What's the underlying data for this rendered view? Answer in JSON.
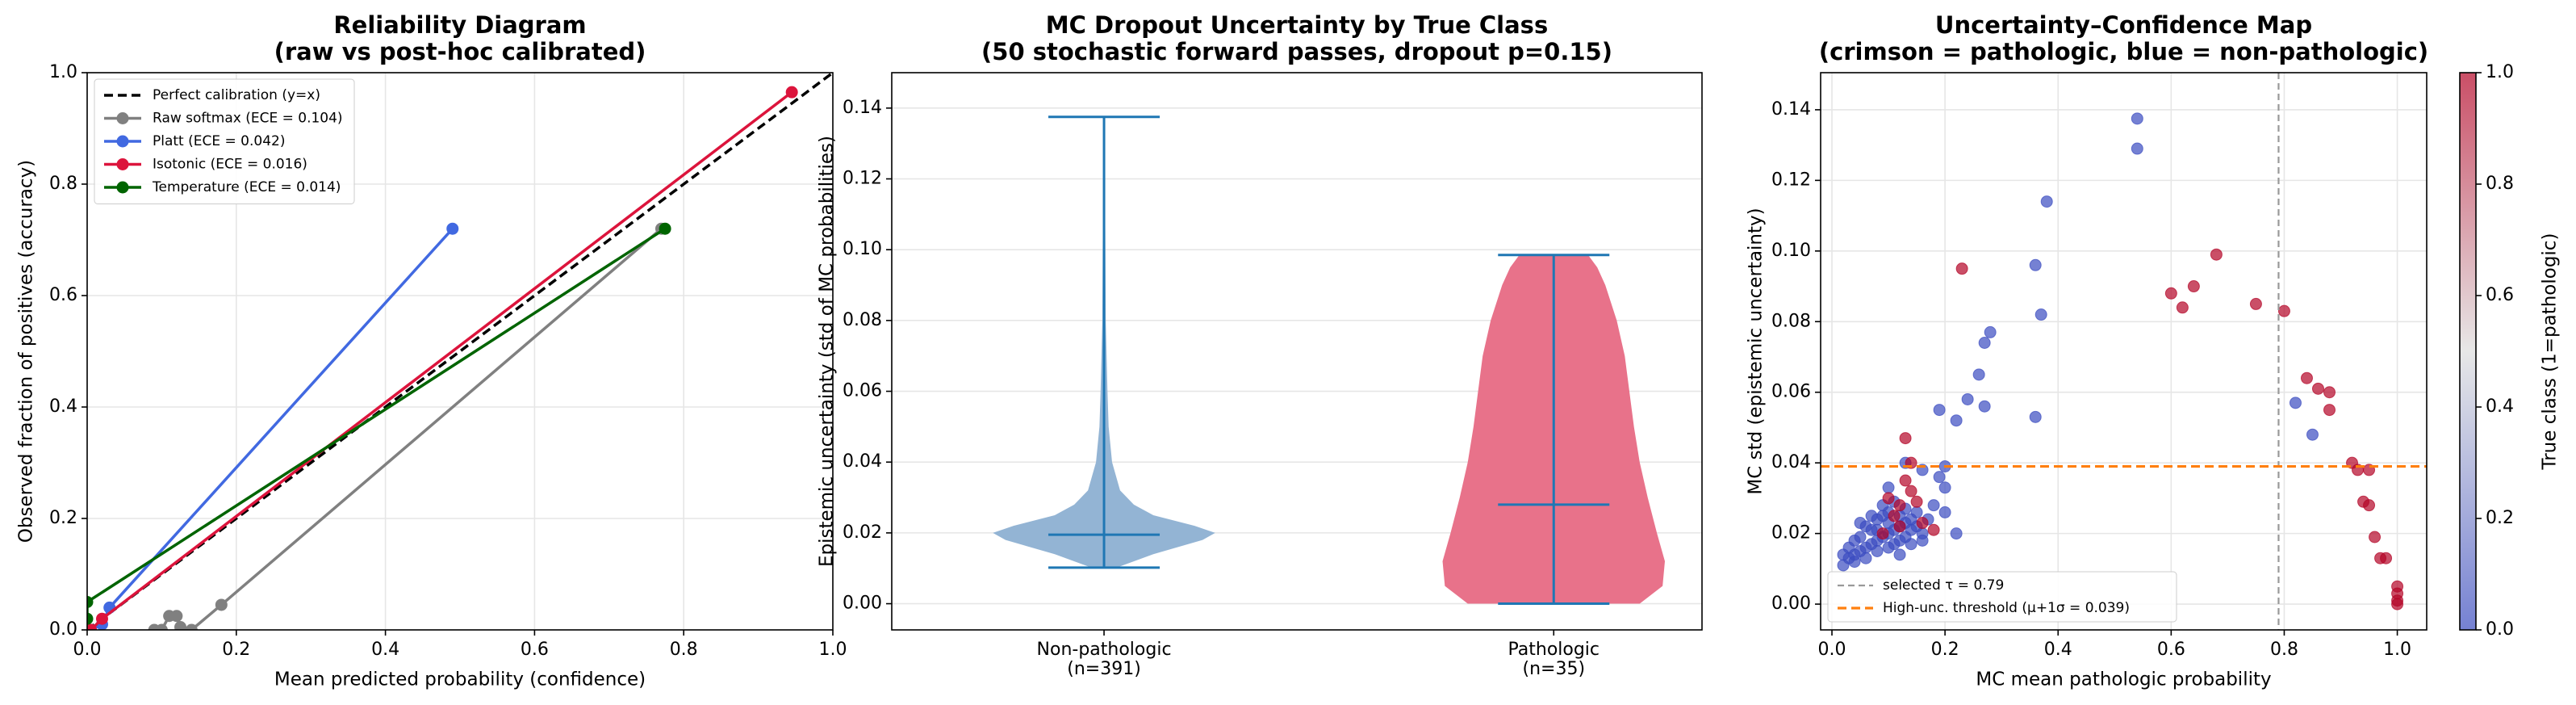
{
  "chart_data": [
    {
      "type": "line",
      "title": [
        "Reliability Diagram",
        "(raw vs post-hoc calibrated)"
      ],
      "xlabel": "Mean predicted probability (confidence)",
      "ylabel": "Observed fraction of positives (accuracy)",
      "xlim": [
        0,
        1
      ],
      "ylim": [
        0,
        1
      ],
      "xticks": [
        {
          "value": 0,
          "label": "0.0"
        },
        0.2,
        0.4,
        0.6,
        0.8,
        {
          "value": 1,
          "label": "1.0"
        }
      ],
      "yticks": [
        {
          "value": 0,
          "label": "0.0"
        },
        0.2,
        0.4,
        0.6,
        0.8,
        {
          "value": 1,
          "label": "1.0"
        }
      ],
      "grid": true,
      "legend": "upper left",
      "series": [
        {
          "name": "Perfect calibration (y=x)",
          "color": "#000000",
          "dashed": true,
          "markers": false,
          "x": [
            0,
            1
          ],
          "y": [
            0,
            1
          ]
        },
        {
          "name": "Raw softmax (ECE = 0.104)",
          "color": "#808080",
          "dashed": false,
          "markers": true,
          "x": [
            0.09,
            0.1,
            0.11,
            0.12,
            0.125,
            0.14,
            0.18,
            0.77
          ],
          "y": [
            0,
            0,
            0.025,
            0.025,
            0.005,
            0,
            0.045,
            0.72
          ]
        },
        {
          "name": "Platt (ECE = 0.042)",
          "color": "#4169e1",
          "dashed": false,
          "markers": true,
          "x": [
            0.005,
            0.02,
            0.03,
            0.49
          ],
          "y": [
            0,
            0.01,
            0.04,
            0.72
          ]
        },
        {
          "name": "Isotonic (ECE = 0.016)",
          "color": "#dc143c",
          "dashed": false,
          "markers": true,
          "x": [
            0.005,
            0.02,
            0.945
          ],
          "y": [
            0,
            0.02,
            0.965
          ]
        },
        {
          "name": "Temperature (ECE = 0.014)",
          "color": "#006400",
          "dashed": false,
          "markers": true,
          "x": [
            0,
            0,
            0.775
          ],
          "y": [
            0.02,
            0.05,
            0.72
          ]
        }
      ]
    },
    {
      "type": "violin",
      "title": [
        "MC Dropout Uncertainty by True Class",
        "(50 stochastic forward passes, dropout p=0.15)"
      ],
      "ylabel": "Epistemic uncertainty (std of MC probabilities)",
      "categories": [
        [
          "Non-pathologic",
          "(n=391)"
        ],
        [
          "Pathologic",
          "(n=35)"
        ]
      ],
      "ylim": [
        -0.0074,
        0.15
      ],
      "yticks": [
        {
          "value": 0,
          "label": "0.00"
        },
        0.02,
        0.04,
        0.06,
        0.08,
        {
          "value": 0.1,
          "label": "0.10"
        },
        0.12,
        0.14
      ],
      "grid": true,
      "line_color": "#1f77b4",
      "series": [
        {
          "color": "#93b4d4",
          "min": 0.0102,
          "max": 0.1375,
          "median": 0.0195,
          "profile": {
            "y": [
              0.0102,
              0.014,
              0.018,
              0.02,
              0.022,
              0.025,
              0.028,
              0.032,
              0.04,
              0.05,
              0.06,
              0.08,
              0.1375
            ],
            "half_width": [
              0.11,
              0.43,
              0.86,
              0.97,
              0.79,
              0.43,
              0.26,
              0.14,
              0.07,
              0.04,
              0.03,
              0.015,
              0.005
            ]
          }
        },
        {
          "color": "#e8728a",
          "min": 0,
          "max": 0.0985,
          "median": 0.028,
          "profile": {
            "y": [
              0,
              0.005,
              0.012,
              0.02,
              0.03,
              0.04,
              0.05,
              0.06,
              0.07,
              0.08,
              0.09,
              0.095,
              0.0985
            ],
            "half_width": [
              0.75,
              0.95,
              0.97,
              0.9,
              0.82,
              0.75,
              0.7,
              0.66,
              0.62,
              0.55,
              0.45,
              0.38,
              0.3
            ]
          }
        }
      ]
    },
    {
      "type": "scatter",
      "title": [
        "Uncertainty–Confidence Map",
        "(crimson = pathologic, blue = non-pathologic)"
      ],
      "xlabel": "MC mean pathologic probability",
      "ylabel": "MC std (epistemic uncertainty)",
      "xlim": [
        -0.02,
        1.052
      ],
      "ylim": [
        -0.0073,
        0.1505
      ],
      "xticks": [
        {
          "value": 0,
          "label": "0.0"
        },
        0.2,
        0.4,
        0.6,
        0.8,
        {
          "value": 1,
          "label": "1.0"
        }
      ],
      "yticks": [
        {
          "value": 0,
          "label": "0.00"
        },
        0.02,
        0.04,
        0.06,
        0.08,
        {
          "value": 0.1,
          "label": "0.10"
        },
        0.12,
        0.14
      ],
      "grid": true,
      "legend": "lower left",
      "x": [
        0.02,
        0.03,
        0.04,
        0.05,
        0.06,
        0.07,
        0.08,
        0.09,
        0.1,
        0.11,
        0.12,
        0.13,
        0.14,
        0.15,
        0.16,
        0.05,
        0.06,
        0.07,
        0.08,
        0.09,
        0.1,
        0.11,
        0.12,
        0.13,
        0.14,
        0.15,
        0.04,
        0.03,
        0.06,
        0.08,
        0.1,
        0.12,
        0.09,
        0.11,
        0.13,
        0.07,
        0.05,
        0.17,
        0.1,
        0.08,
        0.12,
        0.14,
        0.02,
        0.04,
        0.16,
        0.54,
        0.54,
        0.38,
        0.36,
        0.37,
        0.36,
        0.28,
        0.27,
        0.26,
        0.24,
        0.27,
        0.19,
        0.22,
        0.2,
        0.19,
        0.2,
        0.18,
        0.2,
        0.22,
        0.82,
        0.85,
        0.13,
        0.1,
        0.16,
        0.23,
        0.6,
        0.62,
        0.64,
        0.68,
        0.75,
        0.8,
        0.84,
        0.86,
        0.88,
        0.88,
        0.92,
        0.93,
        0.95,
        0.94,
        0.95,
        0.96,
        0.97,
        0.98,
        1.0,
        1.0,
        1.0,
        1.0,
        0.13,
        0.14,
        0.13,
        0.14,
        0.15,
        0.12,
        0.11,
        0.16,
        0.09,
        0.12,
        0.18,
        0.1
      ],
      "y": [
        0.011,
        0.013,
        0.014,
        0.015,
        0.016,
        0.017,
        0.018,
        0.019,
        0.02,
        0.021,
        0.022,
        0.023,
        0.024,
        0.022,
        0.02,
        0.019,
        0.022,
        0.021,
        0.024,
        0.025,
        0.026,
        0.017,
        0.018,
        0.019,
        0.017,
        0.026,
        0.018,
        0.016,
        0.013,
        0.015,
        0.016,
        0.014,
        0.028,
        0.029,
        0.027,
        0.025,
        0.023,
        0.024,
        0.023,
        0.021,
        0.025,
        0.021,
        0.014,
        0.012,
        0.018,
        0.1375,
        0.129,
        0.114,
        0.096,
        0.082,
        0.053,
        0.077,
        0.074,
        0.065,
        0.058,
        0.056,
        0.055,
        0.052,
        0.039,
        0.036,
        0.033,
        0.028,
        0.026,
        0.02,
        0.057,
        0.048,
        0.04,
        0.033,
        0.038,
        0.095,
        0.088,
        0.084,
        0.09,
        0.099,
        0.085,
        0.083,
        0.064,
        0.061,
        0.06,
        0.055,
        0.04,
        0.038,
        0.038,
        0.029,
        0.028,
        0.019,
        0.013,
        0.013,
        0.005,
        0.003,
        0.001,
        0.0,
        0.047,
        0.04,
        0.035,
        0.032,
        0.029,
        0.028,
        0.025,
        0.023,
        0.02,
        0.022,
        0.021,
        0.03
      ],
      "c": [
        0,
        0,
        0,
        0,
        0,
        0,
        0,
        0,
        0,
        0,
        0,
        0,
        0,
        0,
        0,
        0,
        0,
        0,
        0,
        0,
        0,
        0,
        0,
        0,
        0,
        0,
        0,
        0,
        0,
        0,
        0,
        0,
        0,
        0,
        0,
        0,
        0,
        0,
        0,
        0,
        0,
        0,
        0,
        0,
        0,
        0,
        0,
        0,
        0,
        0,
        0,
        0,
        0,
        0,
        0,
        0,
        0,
        0,
        0,
        0,
        0,
        0,
        0,
        0,
        0,
        0,
        0,
        0,
        0,
        1,
        1,
        1,
        1,
        1,
        1,
        1,
        1,
        1,
        1,
        1,
        1,
        1,
        1,
        1,
        1,
        1,
        1,
        1,
        1,
        1,
        1,
        1,
        1,
        1,
        1,
        1,
        1,
        1,
        1,
        1,
        1,
        1,
        1,
        1
      ],
      "colormap": [
        "#3b4cc0",
        "#dddddd",
        "#b40426"
      ],
      "alpha": 0.7,
      "clim": [
        0,
        1
      ],
      "cticks": [
        {
          "value": 0,
          "label": "0.0"
        },
        0.2,
        0.4,
        0.6,
        0.8,
        {
          "value": 1,
          "label": "1.0"
        }
      ],
      "clabel": "True class (1=pathologic)",
      "vline": {
        "value": 0.79,
        "label": "selected τ = 0.79",
        "color": "#999999"
      },
      "hline": {
        "value": 0.039,
        "label": "High-unc. threshold (μ+1σ = 0.039)",
        "color": "#ff7f0e"
      }
    }
  ]
}
